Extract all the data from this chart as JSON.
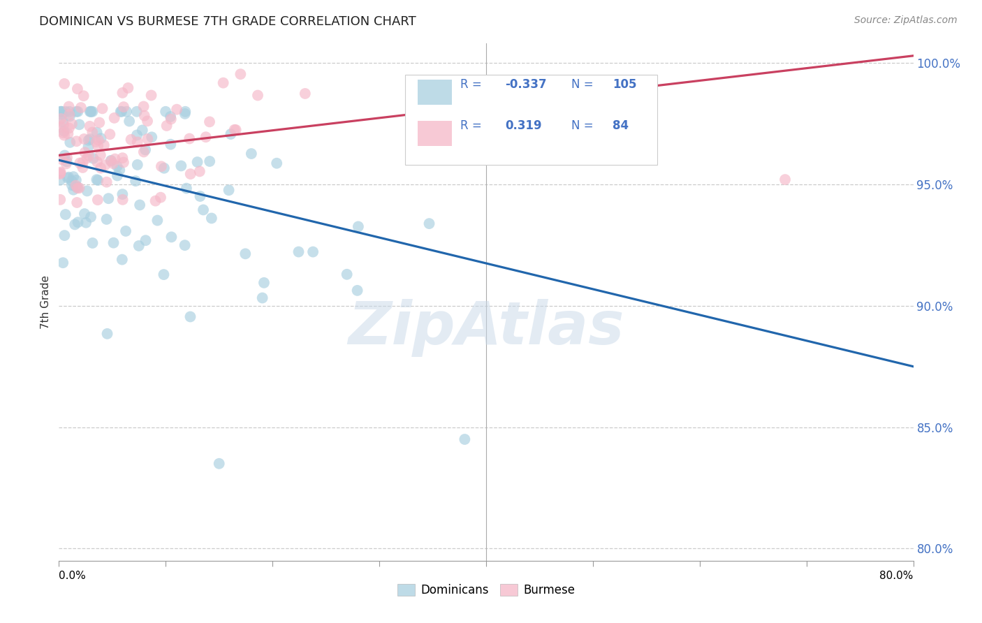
{
  "title": "DOMINICAN VS BURMESE 7TH GRADE CORRELATION CHART",
  "source": "Source: ZipAtlas.com",
  "ylabel": "7th Grade",
  "watermark": "ZipAtlas",
  "legend_blue_label": "Dominicans",
  "legend_pink_label": "Burmese",
  "R_blue_text": "-0.337",
  "N_blue_text": "105",
  "R_pink_text": "0.319",
  "N_pink_text": "84",
  "blue_color": "#a8cfe0",
  "pink_color": "#f5b8c8",
  "line_blue": "#2166ac",
  "line_pink": "#c94060",
  "xmin": 0.0,
  "xmax": 0.8,
  "ymin": 0.795,
  "ymax": 1.008,
  "yticks": [
    0.8,
    0.85,
    0.9,
    0.95,
    1.0
  ],
  "ytick_labels": [
    "80.0%",
    "85.0%",
    "90.0%",
    "95.0%",
    "100.0%"
  ],
  "blue_line_x0": 0.0,
  "blue_line_x1": 0.8,
  "blue_line_y0": 0.96,
  "blue_line_y1": 0.875,
  "pink_line_x0": 0.0,
  "pink_line_x1": 0.8,
  "pink_line_y0": 0.962,
  "pink_line_y1": 1.003
}
